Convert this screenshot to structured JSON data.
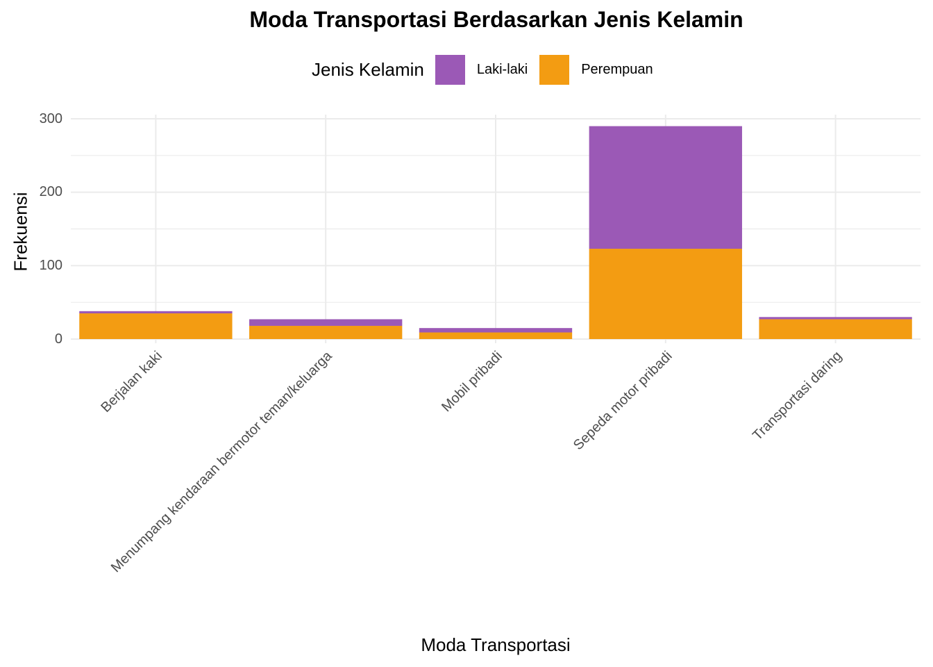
{
  "title": "Moda Transportasi Berdasarkan Jenis Kelamin",
  "legend": {
    "title": "Jenis Kelamin",
    "items": [
      {
        "label": "Laki-laki",
        "color": "#9B59B6"
      },
      {
        "label": "Perempuan",
        "color": "#F39C12"
      }
    ]
  },
  "axes": {
    "xlabel": "Moda Transportasi",
    "ylabel": "Frekuensi",
    "yticks": [
      "0",
      "100",
      "200",
      "300"
    ]
  },
  "chart_data": {
    "type": "bar",
    "stacked": true,
    "title": "Moda Transportasi Berdasarkan Jenis Kelamin",
    "xlabel": "Moda Transportasi",
    "ylabel": "Frekuensi",
    "ylim": [
      0,
      300
    ],
    "grid": true,
    "legend_position": "top",
    "legend_title": "Jenis Kelamin",
    "categories": [
      "Berjalan kaki",
      "Menumpang kendaraan bermotor teman/keluarga",
      "Mobil pribadi",
      "Sepeda motor pribadi",
      "Transportasi daring"
    ],
    "series": [
      {
        "name": "Laki-laki",
        "color": "#9B59B6",
        "values": [
          3,
          9,
          6,
          167,
          3
        ]
      },
      {
        "name": "Perempuan",
        "color": "#F39C12",
        "values": [
          35,
          18,
          9,
          123,
          27
        ]
      }
    ]
  }
}
